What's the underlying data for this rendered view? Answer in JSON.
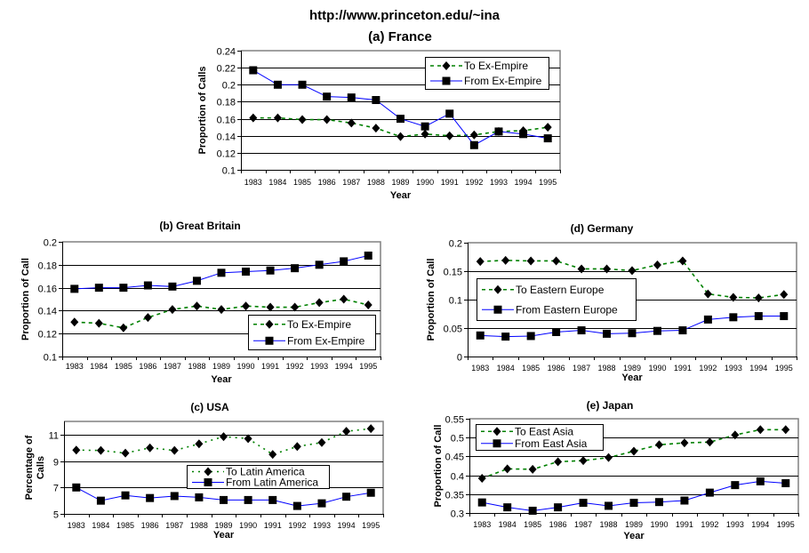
{
  "header": {
    "url": "http://www.princeton.edu/~ina"
  },
  "chart_data": [
    {
      "id": "france",
      "type": "line",
      "title": "(a) France",
      "xlabel": "Year",
      "ylabel": "Proportion of Calls",
      "ylim": [
        0.1,
        0.24
      ],
      "yticks": [
        0.1,
        0.12,
        0.14,
        0.16,
        0.18,
        0.2,
        0.22,
        0.24
      ],
      "ytick_labels": [
        "0.1",
        "0.12",
        "0.14",
        "0.16",
        "0.18",
        "0.2",
        "0.22",
        "0.24"
      ],
      "grid": true,
      "legend_position": "top-right",
      "x": [
        1983,
        1984,
        1985,
        1986,
        1987,
        1988,
        1989,
        1990,
        1991,
        1992,
        1993,
        1994,
        1995
      ],
      "series": [
        {
          "name": "To Ex-Empire",
          "style": "dashed",
          "marker": "diamond",
          "color": "#008000",
          "values": [
            0.161,
            0.161,
            0.159,
            0.159,
            0.155,
            0.149,
            0.139,
            0.142,
            0.14,
            0.141,
            0.145,
            0.146,
            0.15
          ]
        },
        {
          "name": "From Ex-Empire",
          "style": "solid",
          "marker": "square",
          "color": "#0000ff",
          "values": [
            0.217,
            0.2,
            0.2,
            0.186,
            0.185,
            0.182,
            0.16,
            0.151,
            0.166,
            0.129,
            0.145,
            0.142,
            0.137
          ]
        }
      ]
    },
    {
      "id": "great-britain",
      "type": "line",
      "title": "(b) Great Britain",
      "xlabel": "Year",
      "ylabel": "Proportion of Call",
      "ylim": [
        0.1,
        0.2
      ],
      "yticks": [
        0.1,
        0.12,
        0.14,
        0.16,
        0.18,
        0.2
      ],
      "ytick_labels": [
        "0.1",
        "0.12",
        "0.14",
        "0.16",
        "0.18",
        "0.2"
      ],
      "grid": true,
      "legend_position": "bottom-right",
      "x": [
        1983,
        1984,
        1985,
        1986,
        1987,
        1988,
        1989,
        1990,
        1991,
        1992,
        1993,
        1994,
        1995
      ],
      "series": [
        {
          "name": "To Ex-Empire",
          "style": "dashed",
          "marker": "diamond",
          "color": "#008000",
          "values": [
            0.13,
            0.129,
            0.125,
            0.134,
            0.141,
            0.144,
            0.141,
            0.144,
            0.143,
            0.143,
            0.147,
            0.15,
            0.145
          ]
        },
        {
          "name": "From Ex-Empire",
          "style": "solid",
          "marker": "square",
          "color": "#0000ff",
          "values": [
            0.159,
            0.16,
            0.16,
            0.162,
            0.161,
            0.166,
            0.173,
            0.174,
            0.175,
            0.177,
            0.18,
            0.183,
            0.188
          ]
        }
      ]
    },
    {
      "id": "germany",
      "type": "line",
      "title": "(d) Germany",
      "xlabel": "Year",
      "ylabel": "Proportion of Call",
      "ylim": [
        0,
        0.2
      ],
      "yticks": [
        0,
        0.05,
        0.1,
        0.15,
        0.2
      ],
      "ytick_labels": [
        "0",
        "0.05",
        "0.1",
        "0.15",
        "0.2"
      ],
      "grid": true,
      "legend_position": "left",
      "x": [
        1983,
        1984,
        1985,
        1986,
        1987,
        1988,
        1989,
        1990,
        1991,
        1992,
        1993,
        1994,
        1995
      ],
      "series": [
        {
          "name": "To Eastern Europe",
          "style": "dashed",
          "marker": "diamond",
          "color": "#008000",
          "values": [
            0.167,
            0.169,
            0.168,
            0.168,
            0.154,
            0.154,
            0.151,
            0.161,
            0.168,
            0.11,
            0.104,
            0.103,
            0.109
          ]
        },
        {
          "name": "From Eastern Europe",
          "style": "solid",
          "marker": "square",
          "color": "#0000ff",
          "values": [
            0.037,
            0.035,
            0.036,
            0.043,
            0.046,
            0.04,
            0.041,
            0.045,
            0.046,
            0.065,
            0.069,
            0.071,
            0.071
          ]
        }
      ]
    },
    {
      "id": "usa",
      "type": "line",
      "title": "(c) USA",
      "xlabel": "Year",
      "ylabel": "Percentage of Calls",
      "ylim": [
        5,
        12
      ],
      "yticks": [
        5,
        7,
        9,
        11
      ],
      "ytick_labels": [
        "5",
        "7",
        "9",
        "11"
      ],
      "grid": true,
      "legend_position": "center-right",
      "x": [
        1983,
        1984,
        1985,
        1986,
        1987,
        1988,
        1989,
        1990,
        1991,
        1992,
        1993,
        1994,
        1995
      ],
      "series": [
        {
          "name": "To Latin America",
          "style": "dotted",
          "marker": "diamond",
          "color": "#008000",
          "values": [
            9.83,
            9.8,
            9.6,
            10.0,
            9.8,
            10.3,
            10.85,
            10.7,
            9.5,
            10.1,
            10.4,
            11.25,
            11.45
          ]
        },
        {
          "name": "From Latin America",
          "style": "solid",
          "marker": "square",
          "color": "#0000ff",
          "values": [
            7.0,
            6.0,
            6.4,
            6.2,
            6.35,
            6.25,
            6.05,
            6.05,
            6.05,
            5.6,
            5.8,
            6.3,
            6.6
          ]
        }
      ]
    },
    {
      "id": "japan",
      "type": "line",
      "title": "(e) Japan",
      "xlabel": "Year",
      "ylabel": "Proportion of Call",
      "ylim": [
        0.3,
        0.55
      ],
      "yticks": [
        0.3,
        0.35,
        0.4,
        0.45,
        0.5,
        0.55
      ],
      "ytick_labels": [
        "0.3",
        "0.35",
        "0.4",
        "0.45",
        "0.5",
        "0.55"
      ],
      "grid": true,
      "legend_position": "top-left",
      "x": [
        1983,
        1984,
        1985,
        1986,
        1987,
        1988,
        1989,
        1990,
        1991,
        1992,
        1993,
        1994,
        1995
      ],
      "series": [
        {
          "name": "To East Asia",
          "style": "dashed",
          "marker": "diamond",
          "color": "#008000",
          "values": [
            0.392,
            0.417,
            0.416,
            0.436,
            0.439,
            0.447,
            0.464,
            0.481,
            0.486,
            0.488,
            0.507,
            0.521,
            0.521
          ]
        },
        {
          "name": "From East Asia",
          "style": "solid",
          "marker": "square",
          "color": "#0000ff",
          "values": [
            0.328,
            0.315,
            0.306,
            0.315,
            0.327,
            0.319,
            0.327,
            0.329,
            0.333,
            0.354,
            0.374,
            0.384,
            0.379
          ]
        }
      ]
    }
  ]
}
